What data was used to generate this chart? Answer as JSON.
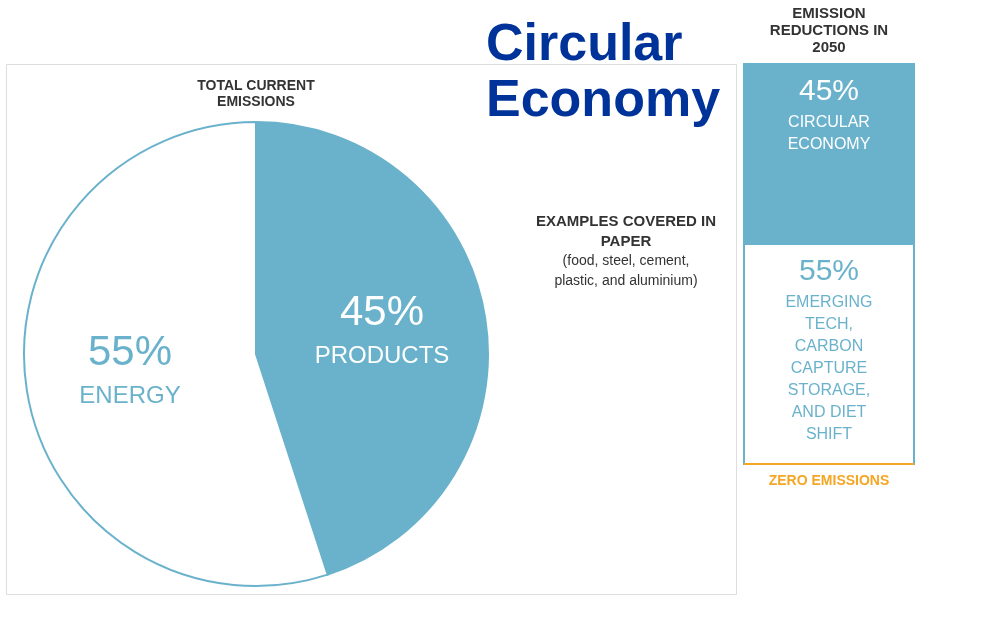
{
  "chart_data": [
    {
      "type": "pie",
      "title": "Circular Economy",
      "subtitle": "TOTAL CURRENT EMISSIONS",
      "categories": [
        "PRODUCTS",
        "ENERGY"
      ],
      "values": [
        45,
        55
      ],
      "colors": [
        "#6ab2cc",
        "#ffffff"
      ],
      "value_labels": [
        "45%",
        "55%"
      ],
      "legend": false,
      "annotations": [
        "EXAMPLES COVERED IN PAPER",
        "(food, steel, cement, plastic, and aluminium)"
      ]
    },
    {
      "type": "bar",
      "title": "EMISSION REDUCTIONS IN 2050",
      "categories": [
        null
      ],
      "stacked": true,
      "series": [
        {
          "name": "EMERGING TECH, CARBON CAPTURE STORAGE, AND DIET SHIFT",
          "color": "#ffffff",
          "values": [
            55
          ],
          "value_labels": [
            "55%"
          ]
        },
        {
          "name": "CIRCULAR ECONOMY",
          "color": "#6ab2cc",
          "values": [
            45
          ],
          "value_labels": [
            "45%"
          ]
        }
      ],
      "ref_lines": [
        {
          "axis": "y",
          "value": 0,
          "label": "ZERO EMISSIONS",
          "color": "#f5a623"
        }
      ]
    }
  ]
}
